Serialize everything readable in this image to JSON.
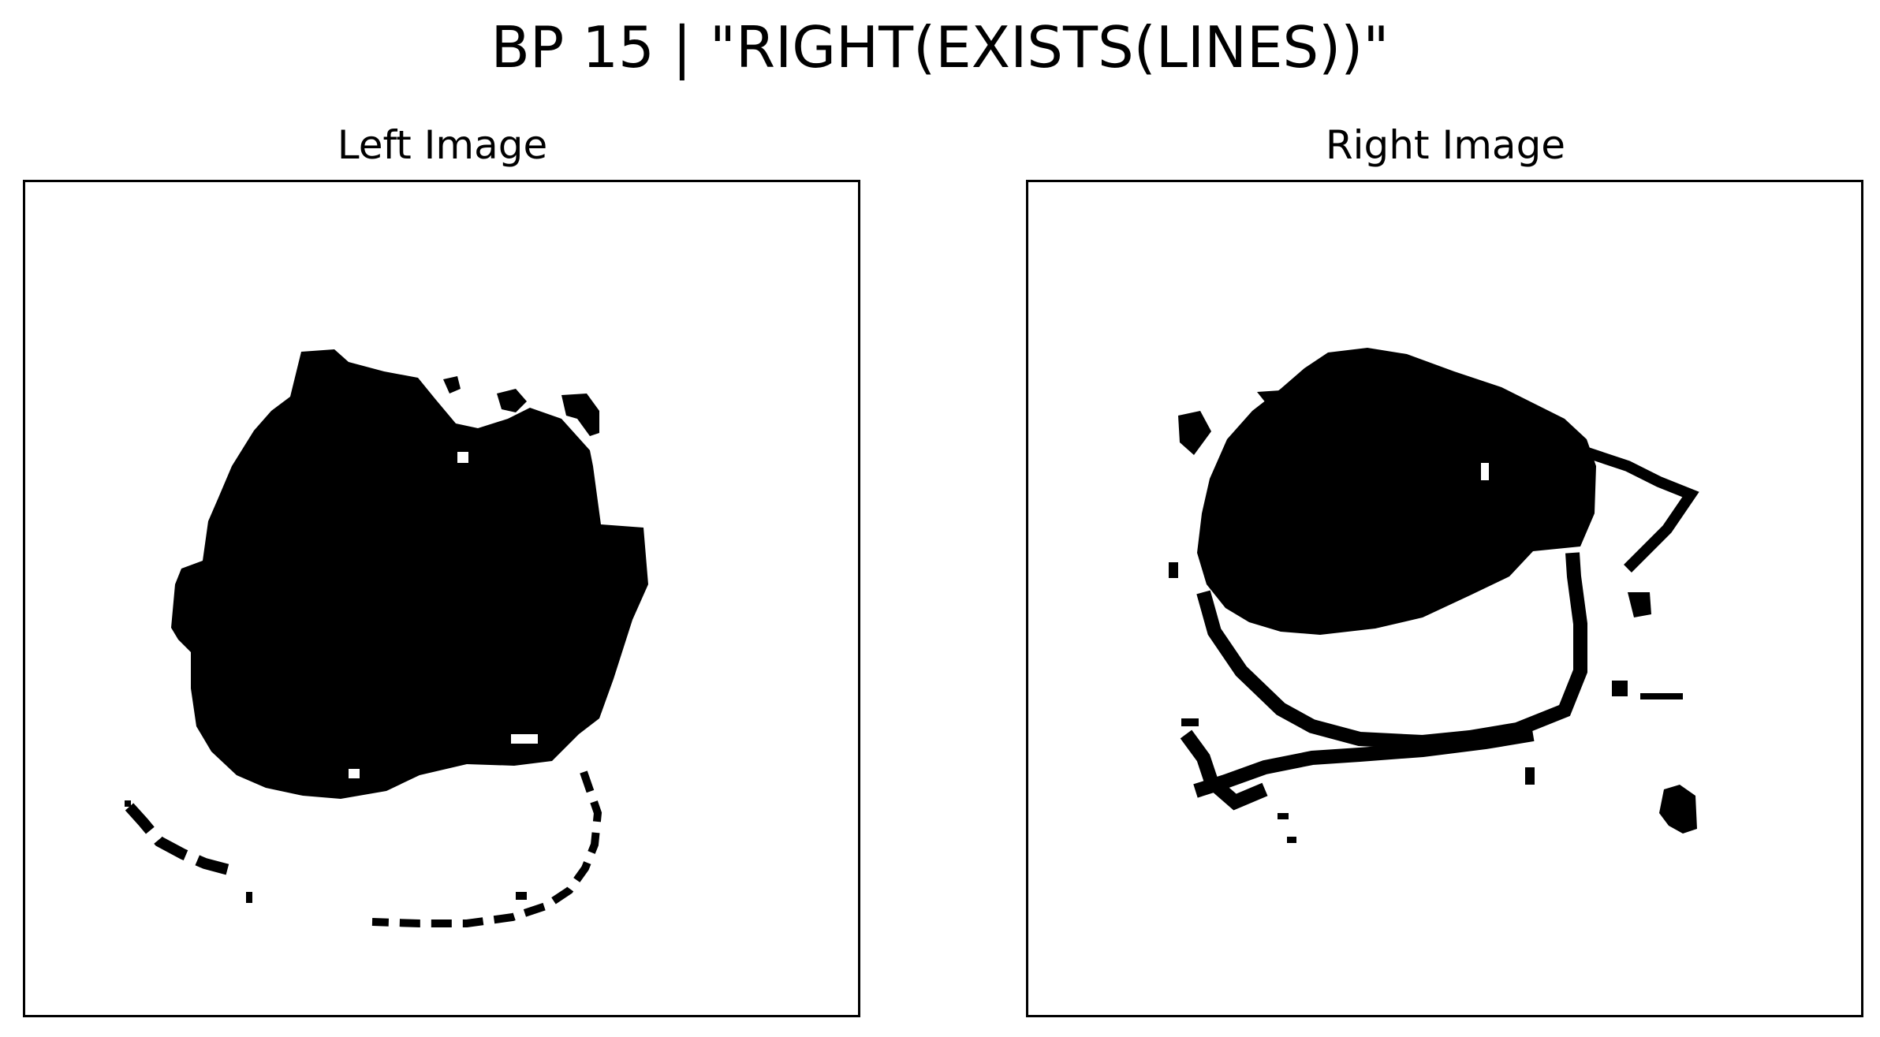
{
  "figure": {
    "title": "BP 15 | \"RIGHT(EXISTS(LINES))\"",
    "left_title": "Left Image",
    "right_title": "Right Image",
    "ink_color": "#000000",
    "background_color": "#ffffff"
  }
}
